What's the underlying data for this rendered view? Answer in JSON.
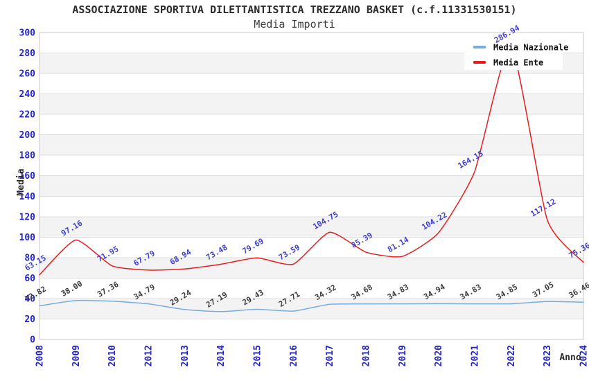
{
  "chart_data": {
    "type": "line",
    "title": "ASSOCIAZIONE SPORTIVA DILETTANTISTICA TREZZANO BASKET (c.f.11331530151)",
    "subtitle": "Media Importi",
    "xlabel": "Anno",
    "ylabel": "Media",
    "categories": [
      "2008",
      "2009",
      "2010",
      "2012",
      "2013",
      "2014",
      "2015",
      "2016",
      "2017",
      "2018",
      "2019",
      "2020",
      "2021",
      "2022",
      "2023",
      "2024"
    ],
    "series": [
      {
        "name": "Media Nazionale",
        "color": "#74ade2",
        "label_color": "#3d3d3d",
        "values": [
          32.82,
          38.0,
          37.36,
          34.79,
          29.24,
          27.19,
          29.43,
          27.71,
          34.32,
          34.68,
          34.83,
          34.94,
          34.83,
          34.85,
          37.05,
          36.46
        ]
      },
      {
        "name": "Media Ente",
        "color": "#e81c1c",
        "label_color": "#4040cc",
        "values": [
          63.15,
          97.16,
          71.95,
          67.79,
          68.94,
          73.48,
          79.69,
          73.59,
          104.75,
          85.39,
          81.14,
          104.22,
          164.15,
          286.94,
          117.12,
          75.36
        ]
      }
    ],
    "ylim": [
      0,
      300
    ],
    "ytick_step": 20,
    "grid": "horizontal-bands",
    "legend_position": "top-right"
  },
  "style": {
    "tick_color": "#2323cc",
    "band_color": "#f3f3f3",
    "gridline_color": "#dedede",
    "plot_border_color": "#c8c8c8",
    "axis_title_color": "#2b2b2b",
    "legend_text_color": "#111111",
    "background": "#ffffff"
  }
}
